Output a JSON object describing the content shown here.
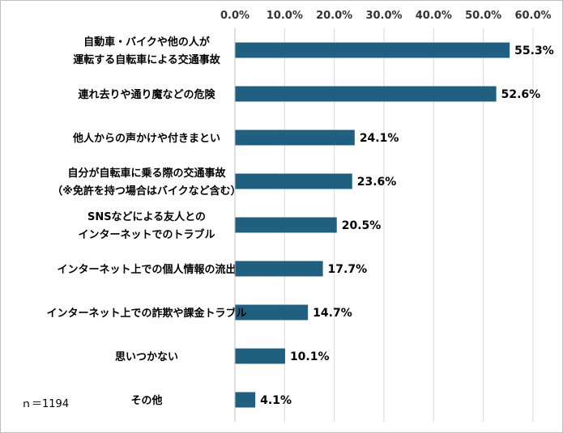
{
  "chart_data": {
    "type": "bar",
    "orientation": "horizontal",
    "categories": [
      [
        "自動車・バイクや他の人が",
        "運転する自転車による交通事故"
      ],
      [
        "連れ去りや通り魔などの危険"
      ],
      [
        "他人からの声かけや付きまとい"
      ],
      [
        "自分が自転車に乗る際の交通事故",
        "（※免許を持つ場合はバイクなど含む）"
      ],
      [
        "SNSなどによる友人との",
        "インターネットでのトラブル"
      ],
      [
        "インターネット上での個人情報の流出"
      ],
      [
        "インターネット上での詐欺や課金トラブル"
      ],
      [
        "思いつかない"
      ],
      [
        "その他"
      ]
    ],
    "values": [
      55.3,
      52.6,
      24.1,
      23.6,
      20.5,
      17.7,
      14.7,
      10.1,
      4.1
    ],
    "data_labels": [
      "55.3%",
      "52.6%",
      "24.1%",
      "23.6%",
      "20.5%",
      "17.7%",
      "14.7%",
      "10.1%",
      "4.1%"
    ],
    "xlim": [
      0,
      60
    ],
    "x_ticks": [
      "0.0%",
      "10.0%",
      "20.0%",
      "30.0%",
      "40.0%",
      "50.0%",
      "60.0%"
    ],
    "x_axis_position": "top",
    "grid": true,
    "legend": "none",
    "bar_color": "#1f5f7f",
    "grid_color": "#d9d9d9",
    "note": "ｎ＝1194"
  }
}
